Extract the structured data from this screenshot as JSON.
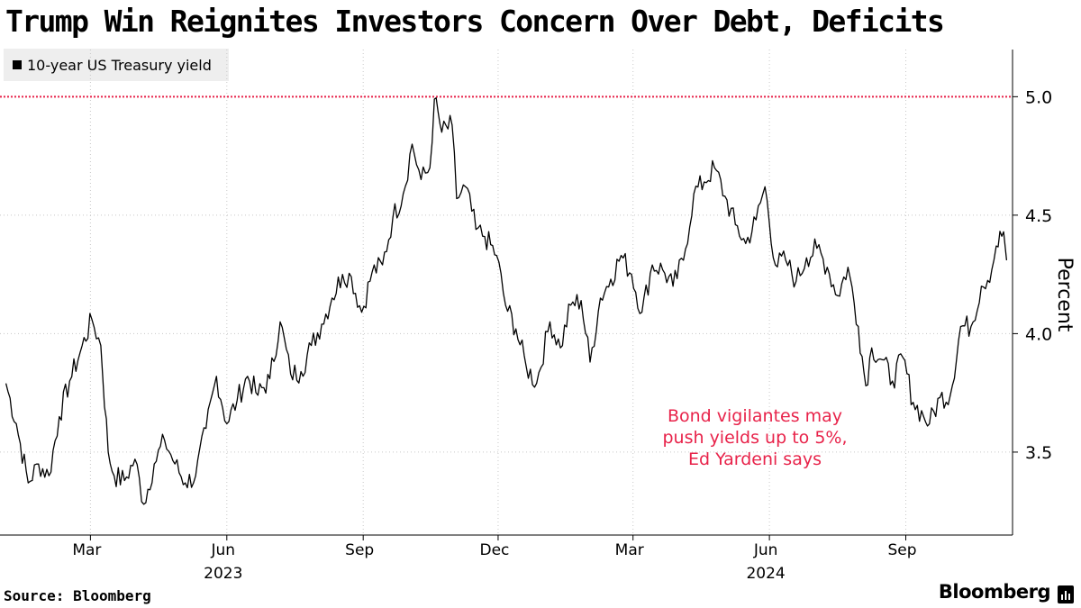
{
  "header": {
    "title": "Trump Win Reignites Investors Concern Over Debt, Deficits"
  },
  "legend": {
    "label": "10-year US Treasury yield"
  },
  "footer": {
    "source": "Source: Bloomberg",
    "brand": "Bloomberg"
  },
  "chart_data": {
    "type": "line",
    "series": [
      {
        "name": "10-year US Treasury yield",
        "color": "#000000",
        "points": [
          [
            "2023-01-03",
            3.79
          ],
          [
            "2023-01-10",
            3.62
          ],
          [
            "2023-01-18",
            3.37
          ],
          [
            "2023-01-25",
            3.45
          ],
          [
            "2023-02-01",
            3.4
          ],
          [
            "2023-02-08",
            3.65
          ],
          [
            "2023-02-15",
            3.8
          ],
          [
            "2023-02-22",
            3.92
          ],
          [
            "2023-03-02",
            4.06
          ],
          [
            "2023-03-08",
            3.95
          ],
          [
            "2023-03-13",
            3.5
          ],
          [
            "2023-03-17",
            3.4
          ],
          [
            "2023-03-24",
            3.38
          ],
          [
            "2023-03-31",
            3.47
          ],
          [
            "2023-04-06",
            3.28
          ],
          [
            "2023-04-13",
            3.45
          ],
          [
            "2023-04-20",
            3.55
          ],
          [
            "2023-04-27",
            3.45
          ],
          [
            "2023-05-04",
            3.37
          ],
          [
            "2023-05-11",
            3.4
          ],
          [
            "2023-05-18",
            3.6
          ],
          [
            "2023-05-25",
            3.82
          ],
          [
            "2023-06-01",
            3.62
          ],
          [
            "2023-06-08",
            3.72
          ],
          [
            "2023-06-15",
            3.82
          ],
          [
            "2023-06-22",
            3.74
          ],
          [
            "2023-06-30",
            3.81
          ],
          [
            "2023-07-07",
            4.05
          ],
          [
            "2023-07-14",
            3.83
          ],
          [
            "2023-07-21",
            3.84
          ],
          [
            "2023-07-28",
            3.95
          ],
          [
            "2023-08-04",
            4.04
          ],
          [
            "2023-08-11",
            4.15
          ],
          [
            "2023-08-18",
            4.25
          ],
          [
            "2023-08-24",
            4.24
          ],
          [
            "2023-08-31",
            4.09
          ],
          [
            "2023-09-07",
            4.26
          ],
          [
            "2023-09-14",
            4.29
          ],
          [
            "2023-09-21",
            4.49
          ],
          [
            "2023-09-28",
            4.59
          ],
          [
            "2023-10-04",
            4.8
          ],
          [
            "2023-10-10",
            4.65
          ],
          [
            "2023-10-16",
            4.7
          ],
          [
            "2023-10-19",
            4.99
          ],
          [
            "2023-10-24",
            4.85
          ],
          [
            "2023-10-31",
            4.88
          ],
          [
            "2023-11-03",
            4.57
          ],
          [
            "2023-11-09",
            4.62
          ],
          [
            "2023-11-16",
            4.44
          ],
          [
            "2023-11-22",
            4.41
          ],
          [
            "2023-11-30",
            4.33
          ],
          [
            "2023-12-06",
            4.12
          ],
          [
            "2023-12-13",
            4.02
          ],
          [
            "2023-12-20",
            3.86
          ],
          [
            "2023-12-27",
            3.79
          ],
          [
            "2024-01-05",
            4.05
          ],
          [
            "2024-01-12",
            3.94
          ],
          [
            "2024-01-19",
            4.12
          ],
          [
            "2024-01-26",
            4.14
          ],
          [
            "2024-02-01",
            3.88
          ],
          [
            "2024-02-08",
            4.15
          ],
          [
            "2024-02-15",
            4.23
          ],
          [
            "2024-02-22",
            4.33
          ],
          [
            "2024-02-29",
            4.25
          ],
          [
            "2024-03-07",
            4.09
          ],
          [
            "2024-03-14",
            4.29
          ],
          [
            "2024-03-21",
            4.27
          ],
          [
            "2024-03-28",
            4.2
          ],
          [
            "2024-04-04",
            4.31
          ],
          [
            "2024-04-11",
            4.59
          ],
          [
            "2024-04-18",
            4.64
          ],
          [
            "2024-04-25",
            4.7
          ],
          [
            "2024-05-02",
            4.58
          ],
          [
            "2024-05-09",
            4.46
          ],
          [
            "2024-05-16",
            4.38
          ],
          [
            "2024-05-23",
            4.48
          ],
          [
            "2024-05-29",
            4.62
          ],
          [
            "2024-06-05",
            4.29
          ],
          [
            "2024-06-12",
            4.31
          ],
          [
            "2024-06-19",
            4.22
          ],
          [
            "2024-06-26",
            4.32
          ],
          [
            "2024-07-03",
            4.36
          ],
          [
            "2024-07-10",
            4.28
          ],
          [
            "2024-07-17",
            4.16
          ],
          [
            "2024-07-24",
            4.28
          ],
          [
            "2024-07-31",
            4.03
          ],
          [
            "2024-08-05",
            3.78
          ],
          [
            "2024-08-09",
            3.94
          ],
          [
            "2024-08-16",
            3.89
          ],
          [
            "2024-08-23",
            3.8
          ],
          [
            "2024-08-30",
            3.9
          ],
          [
            "2024-09-06",
            3.71
          ],
          [
            "2024-09-13",
            3.65
          ],
          [
            "2024-09-17",
            3.62
          ],
          [
            "2024-09-24",
            3.73
          ],
          [
            "2024-10-01",
            3.74
          ],
          [
            "2024-10-08",
            4.03
          ],
          [
            "2024-10-15",
            4.03
          ],
          [
            "2024-10-22",
            4.2
          ],
          [
            "2024-10-29",
            4.27
          ],
          [
            "2024-11-01",
            4.37
          ],
          [
            "2024-11-06",
            4.43
          ],
          [
            "2024-11-08",
            4.31
          ]
        ]
      }
    ],
    "x_ticks": [
      {
        "date": "2023-03-01",
        "label": "Mar"
      },
      {
        "date": "2023-06-01",
        "label": "Jun"
      },
      {
        "date": "2023-09-01",
        "label": "Sep"
      },
      {
        "date": "2023-12-01",
        "label": "Dec"
      },
      {
        "date": "2024-03-01",
        "label": "Mar"
      },
      {
        "date": "2024-06-01",
        "label": "Jun"
      },
      {
        "date": "2024-09-01",
        "label": "Sep"
      }
    ],
    "x_year_labels": [
      {
        "date": "2023-06-01",
        "label": "2023"
      },
      {
        "date": "2024-06-01",
        "label": "2024"
      }
    ],
    "xlim": [
      "2022-12-30",
      "2024-11-12"
    ],
    "y_ticks": [
      {
        "value": 3.5,
        "label": "3.5"
      },
      {
        "value": 4.0,
        "label": "4.0"
      },
      {
        "value": 4.5,
        "label": "4.5"
      },
      {
        "value": 5.0,
        "label": "5.0"
      }
    ],
    "ylim": [
      3.15,
      5.18
    ],
    "ylabel": "Percent",
    "reference_line": {
      "value": 5.0,
      "color": "#e8234a",
      "style": "dotted"
    },
    "annotation": {
      "lines": [
        "Bond vigilantes may",
        "push yields up to 5%,",
        "Ed Yardeni says"
      ],
      "color": "#e8234a"
    },
    "grid": true
  }
}
